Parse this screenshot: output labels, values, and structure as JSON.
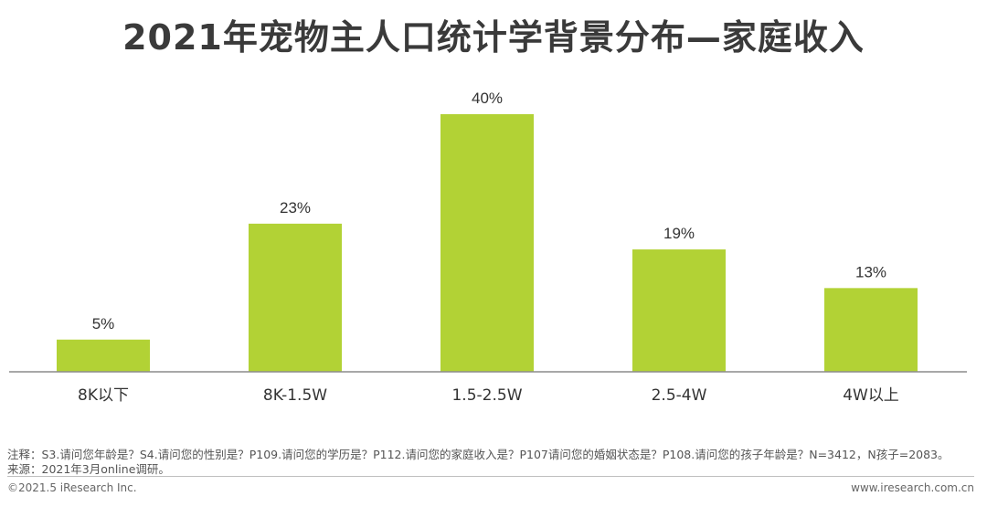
{
  "title": "2021年宠物主人口统计学背景分布—家庭收入",
  "chart_data": {
    "type": "bar",
    "title": "2021年宠物主人口统计学背景分布—家庭收入",
    "categories": [
      "8K以下",
      "8K-1.5W",
      "1.5-2.5W",
      "2.5-4W",
      "4W以上"
    ],
    "values": [
      5,
      23,
      40,
      19,
      13
    ],
    "value_labels": [
      "5%",
      "23%",
      "40%",
      "19%",
      "13%"
    ],
    "unit": "%",
    "xlabel": "",
    "ylabel": "",
    "ylim": [
      0,
      40
    ],
    "grid": false,
    "legend": "none",
    "bar_color": "#b2d235",
    "axis_color": "#8c8c8c"
  },
  "notes": {
    "line1": "注释：S3.请问您年龄是？S4.请问您的性别是？P109.请问您的学历是？P112.请问您的家庭收入是？P107请问您的婚姻状态是？P108.请问您的孩子年龄是？N=3412，N孩子=2083。",
    "line2": "来源：2021年3月online调研。"
  },
  "footer": {
    "copyright": "©2021.5 iResearch Inc.",
    "website": "www.iresearch.com.cn"
  }
}
